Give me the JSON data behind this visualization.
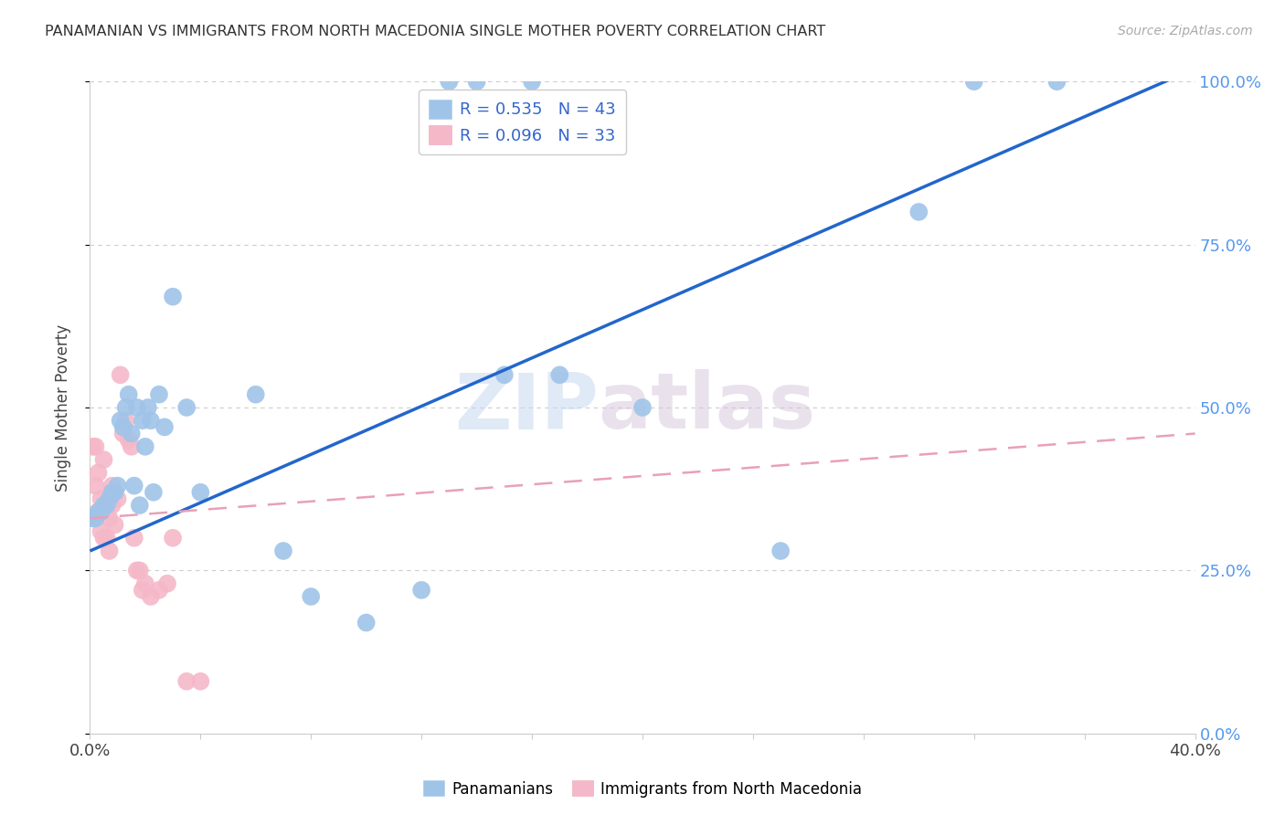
{
  "title": "PANAMANIAN VS IMMIGRANTS FROM NORTH MACEDONIA SINGLE MOTHER POVERTY CORRELATION CHART",
  "source": "Source: ZipAtlas.com",
  "ylabel": "Single Mother Poverty",
  "xlim": [
    0.0,
    0.4
  ],
  "ylim": [
    0.0,
    1.0
  ],
  "ytick_labels_right": [
    "0.0%",
    "25.0%",
    "50.0%",
    "75.0%",
    "100.0%"
  ],
  "yticks": [
    0.0,
    0.25,
    0.5,
    0.75,
    1.0
  ],
  "watermark_zip": "ZIP",
  "watermark_atlas": "atlas",
  "legend_R1": "R = 0.535",
  "legend_N1": "N = 43",
  "legend_R2": "R = 0.096",
  "legend_N2": "N = 33",
  "blue_color": "#a0c4e8",
  "pink_color": "#f5b8c8",
  "line_blue": "#2266cc",
  "line_pink": "#e8a0b8",
  "background": "#ffffff",
  "blue_scatter_x": [
    0.001,
    0.002,
    0.003,
    0.004,
    0.005,
    0.006,
    0.007,
    0.008,
    0.009,
    0.01,
    0.011,
    0.012,
    0.013,
    0.014,
    0.015,
    0.016,
    0.017,
    0.018,
    0.019,
    0.02,
    0.021,
    0.022,
    0.023,
    0.025,
    0.027,
    0.03,
    0.035,
    0.04,
    0.06,
    0.07,
    0.08,
    0.1,
    0.12,
    0.15,
    0.17,
    0.2,
    0.25,
    0.3,
    0.32,
    0.35,
    0.13,
    0.14,
    0.16
  ],
  "blue_scatter_y": [
    0.33,
    0.33,
    0.34,
    0.34,
    0.35,
    0.35,
    0.36,
    0.37,
    0.37,
    0.38,
    0.48,
    0.47,
    0.5,
    0.52,
    0.46,
    0.38,
    0.5,
    0.35,
    0.48,
    0.44,
    0.5,
    0.48,
    0.37,
    0.52,
    0.47,
    0.67,
    0.5,
    0.37,
    0.52,
    0.28,
    0.21,
    0.17,
    0.22,
    0.55,
    0.55,
    0.5,
    0.28,
    0.8,
    1.0,
    1.0,
    1.0,
    1.0,
    1.0
  ],
  "pink_scatter_x": [
    0.001,
    0.002,
    0.002,
    0.003,
    0.003,
    0.004,
    0.004,
    0.005,
    0.005,
    0.006,
    0.006,
    0.007,
    0.007,
    0.008,
    0.008,
    0.009,
    0.01,
    0.011,
    0.012,
    0.013,
    0.014,
    0.015,
    0.016,
    0.017,
    0.018,
    0.019,
    0.02,
    0.022,
    0.025,
    0.028,
    0.03,
    0.035,
    0.04
  ],
  "pink_scatter_y": [
    0.44,
    0.44,
    0.38,
    0.4,
    0.34,
    0.36,
    0.31,
    0.42,
    0.3,
    0.34,
    0.3,
    0.33,
    0.28,
    0.35,
    0.38,
    0.32,
    0.36,
    0.55,
    0.46,
    0.48,
    0.45,
    0.44,
    0.3,
    0.25,
    0.25,
    0.22,
    0.23,
    0.21,
    0.22,
    0.23,
    0.3,
    0.08,
    0.08
  ],
  "blue_line_x0": 0.0,
  "blue_line_y0": 0.28,
  "blue_line_x1": 0.4,
  "blue_line_y1": 1.02,
  "pink_line_x0": 0.0,
  "pink_line_y0": 0.33,
  "pink_line_x1": 0.4,
  "pink_line_y1": 0.46
}
